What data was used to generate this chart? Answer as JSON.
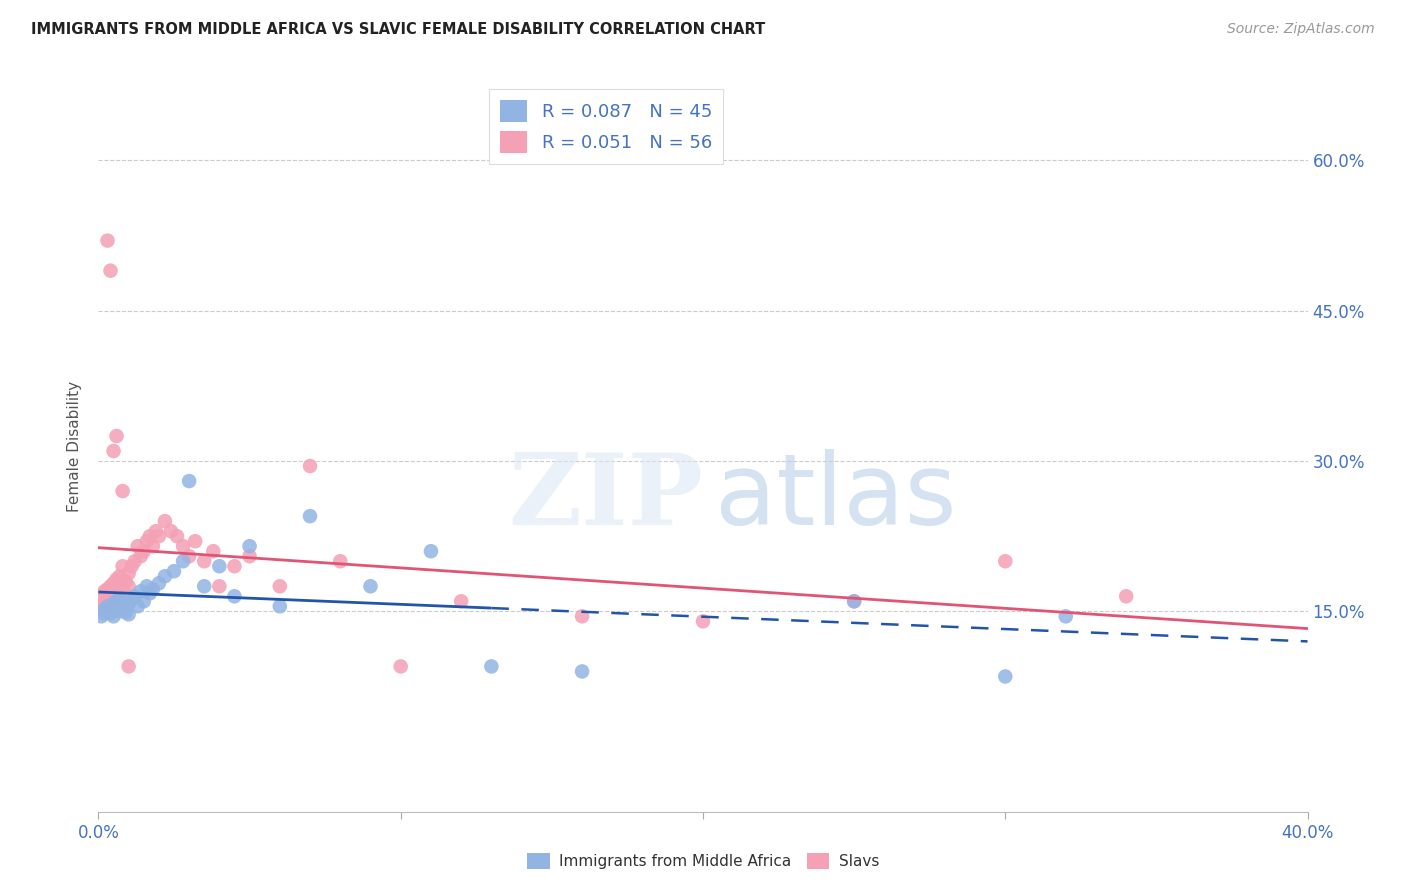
{
  "title": "IMMIGRANTS FROM MIDDLE AFRICA VS SLAVIC FEMALE DISABILITY CORRELATION CHART",
  "source": "Source: ZipAtlas.com",
  "ylabel": "Female Disability",
  "ytick_labels": [
    "60.0%",
    "45.0%",
    "30.0%",
    "15.0%"
  ],
  "ytick_values": [
    0.6,
    0.45,
    0.3,
    0.15
  ],
  "xlim": [
    0.0,
    0.4
  ],
  "ylim": [
    -0.05,
    0.68
  ],
  "legend_blue_R": "0.087",
  "legend_blue_N": "45",
  "legend_pink_R": "0.051",
  "legend_pink_N": "56",
  "legend_label_blue": "Immigrants from Middle Africa",
  "legend_label_pink": "Slavs",
  "blue_color": "#92b4e3",
  "pink_color": "#f4a0b5",
  "blue_line_color": "#2255aa",
  "pink_line_color": "#e05575",
  "blue_scatter_x": [
    0.001,
    0.002,
    0.002,
    0.003,
    0.003,
    0.004,
    0.004,
    0.005,
    0.005,
    0.006,
    0.006,
    0.007,
    0.007,
    0.008,
    0.008,
    0.009,
    0.009,
    0.01,
    0.01,
    0.011,
    0.012,
    0.013,
    0.014,
    0.015,
    0.016,
    0.017,
    0.018,
    0.02,
    0.022,
    0.025,
    0.028,
    0.03,
    0.035,
    0.04,
    0.045,
    0.05,
    0.06,
    0.07,
    0.09,
    0.11,
    0.13,
    0.16,
    0.25,
    0.3,
    0.32
  ],
  "blue_scatter_y": [
    0.145,
    0.148,
    0.152,
    0.15,
    0.155,
    0.148,
    0.152,
    0.145,
    0.158,
    0.155,
    0.16,
    0.15,
    0.162,
    0.153,
    0.158,
    0.149,
    0.155,
    0.147,
    0.158,
    0.162,
    0.165,
    0.155,
    0.17,
    0.16,
    0.175,
    0.168,
    0.172,
    0.178,
    0.185,
    0.19,
    0.2,
    0.28,
    0.175,
    0.195,
    0.165,
    0.215,
    0.155,
    0.245,
    0.175,
    0.21,
    0.095,
    0.09,
    0.16,
    0.085,
    0.145
  ],
  "pink_scatter_x": [
    0.001,
    0.001,
    0.002,
    0.002,
    0.003,
    0.003,
    0.004,
    0.004,
    0.005,
    0.005,
    0.006,
    0.006,
    0.007,
    0.007,
    0.008,
    0.008,
    0.009,
    0.01,
    0.01,
    0.011,
    0.012,
    0.013,
    0.014,
    0.015,
    0.016,
    0.017,
    0.018,
    0.019,
    0.02,
    0.022,
    0.024,
    0.026,
    0.028,
    0.03,
    0.032,
    0.035,
    0.038,
    0.04,
    0.045,
    0.05,
    0.06,
    0.07,
    0.08,
    0.1,
    0.12,
    0.16,
    0.2,
    0.25,
    0.3,
    0.34,
    0.003,
    0.004,
    0.005,
    0.006,
    0.008,
    0.01
  ],
  "pink_scatter_y": [
    0.155,
    0.165,
    0.16,
    0.17,
    0.158,
    0.172,
    0.165,
    0.175,
    0.162,
    0.178,
    0.168,
    0.182,
    0.175,
    0.185,
    0.172,
    0.195,
    0.18,
    0.188,
    0.175,
    0.195,
    0.2,
    0.215,
    0.205,
    0.21,
    0.22,
    0.225,
    0.215,
    0.23,
    0.225,
    0.24,
    0.23,
    0.225,
    0.215,
    0.205,
    0.22,
    0.2,
    0.21,
    0.175,
    0.195,
    0.205,
    0.175,
    0.295,
    0.2,
    0.095,
    0.16,
    0.145,
    0.14,
    0.16,
    0.2,
    0.165,
    0.52,
    0.49,
    0.31,
    0.325,
    0.27,
    0.095
  ]
}
